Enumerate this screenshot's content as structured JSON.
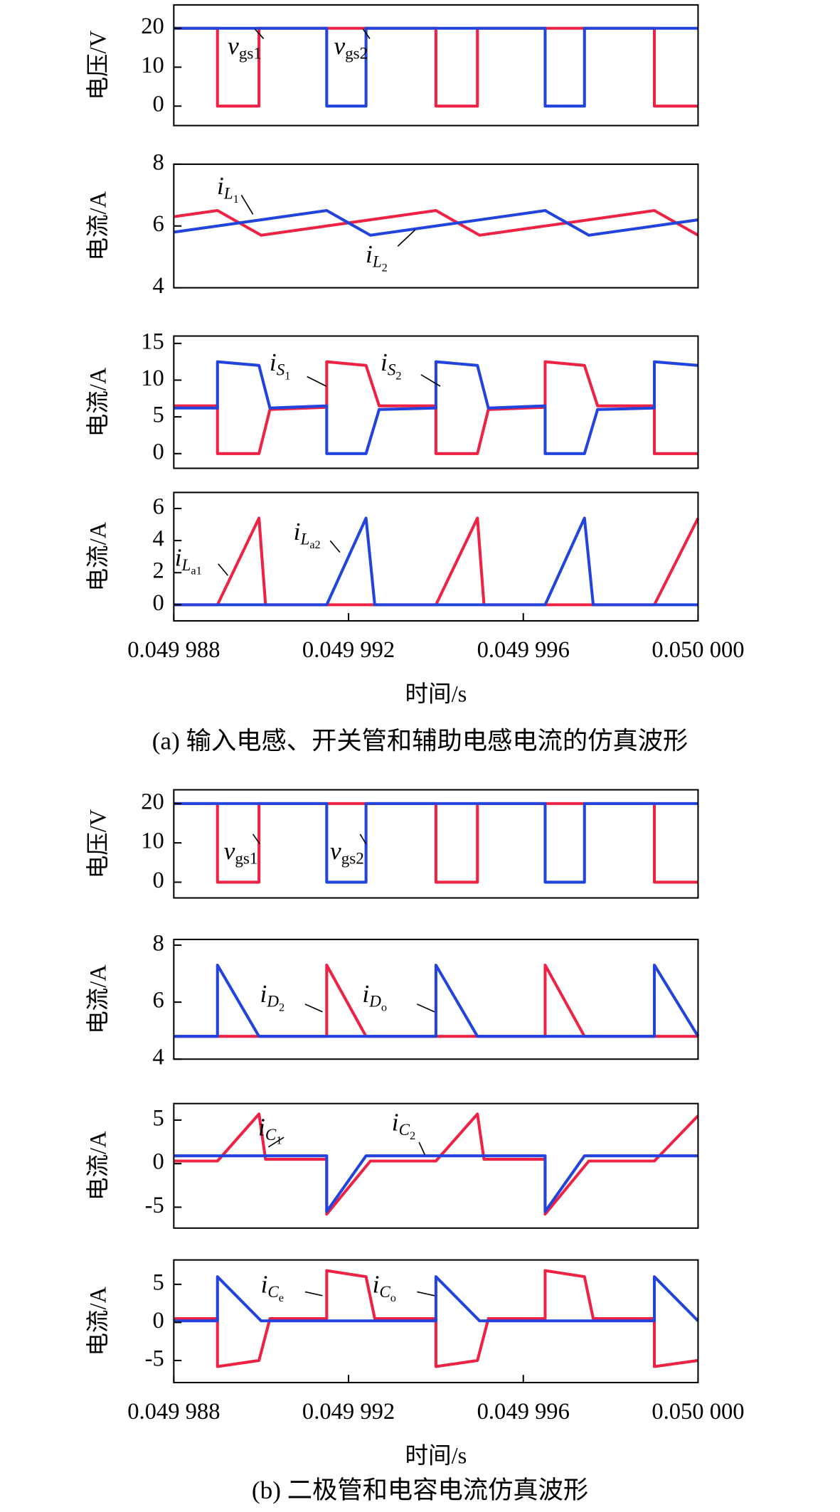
{
  "chart_data": [
    {
      "type": "line",
      "ylabel": "电压/V",
      "xlim": [
        0.049988,
        0.05
      ],
      "ylim": [
        -5,
        26
      ],
      "yticks": [
        0,
        10,
        20
      ],
      "series": [
        {
          "color": "#ee2244",
          "x": [
            0.049988,
            0.049989,
            0.049989,
            0.04998995,
            0.04998995,
            0.049994,
            0.049994,
            0.04999495,
            0.04999495,
            0.049999,
            0.049999,
            0.05
          ],
          "values": [
            20,
            20,
            0,
            0,
            20,
            20,
            0,
            0,
            20,
            20,
            0,
            0
          ]
        },
        {
          "color": "#2244dd",
          "x": [
            0.049988,
            0.0499915,
            0.0499915,
            0.0499924,
            0.0499924,
            0.0499965,
            0.0499965,
            0.0499974,
            0.0499974,
            0.05
          ],
          "values": [
            20,
            20,
            0,
            0,
            20,
            20,
            0,
            0,
            20,
            20
          ]
        }
      ],
      "annotations": [
        {
          "text": "v",
          "sub": "gs1"
        },
        {
          "text": "v",
          "sub": "gs2"
        }
      ]
    },
    {
      "type": "line",
      "ylabel": "电流/A",
      "xlim": [
        0.049988,
        0.05
      ],
      "ylim": [
        4,
        8
      ],
      "yticks": [
        4,
        6,
        8
      ],
      "series": [
        {
          "color": "#ee2244",
          "x": [
            0.049988,
            0.049989,
            0.04999,
            0.049994,
            0.049995,
            0.049999,
            0.05
          ],
          "values": [
            6.3,
            6.5,
            5.7,
            6.5,
            5.7,
            6.5,
            5.7
          ]
        },
        {
          "color": "#2244dd",
          "x": [
            0.049988,
            0.0499915,
            0.0499925,
            0.0499965,
            0.0499975,
            0.05
          ],
          "values": [
            5.8,
            6.5,
            5.7,
            6.5,
            5.7,
            6.2
          ]
        }
      ],
      "annotations": [
        {
          "text": "i",
          "sub": "L",
          "sub2": "1"
        },
        {
          "text": "i",
          "sub": "L",
          "sub2": "2"
        }
      ]
    },
    {
      "type": "line",
      "ylabel": "电流/A",
      "xlim": [
        0.049988,
        0.05
      ],
      "ylim": [
        -2,
        16
      ],
      "yticks": [
        0,
        5,
        10,
        15
      ],
      "series": [
        {
          "color": "#ee2244",
          "x": [
            0.049988,
            0.049989,
            0.049989,
            0.04998995,
            0.0499902,
            0.0499915,
            0.0499915,
            0.0499924,
            0.0499927,
            0.049994,
            0.049994,
            0.04999495,
            0.0499952,
            0.0499965,
            0.0499965,
            0.0499974,
            0.0499977,
            0.049999,
            0.049999,
            0.05
          ],
          "values": [
            6.5,
            6.5,
            0,
            0,
            6,
            6.3,
            12.5,
            12,
            6.5,
            6.5,
            0,
            0,
            6,
            6.3,
            12.5,
            12,
            6.5,
            6.5,
            0,
            0
          ]
        },
        {
          "color": "#2244dd",
          "x": [
            0.049988,
            0.049989,
            0.049989,
            0.04998995,
            0.0499902,
            0.0499915,
            0.0499915,
            0.0499924,
            0.0499927,
            0.049994,
            0.049994,
            0.04999495,
            0.0499952,
            0.0499965,
            0.0499965,
            0.0499974,
            0.0499977,
            0.049999,
            0.049999,
            0.05
          ],
          "values": [
            6.2,
            6.2,
            12.5,
            12,
            6.2,
            6.5,
            0,
            0,
            6,
            6.2,
            12.5,
            12,
            6.2,
            6.5,
            0,
            0,
            6,
            6.2,
            12.5,
            12
          ]
        }
      ],
      "annotations": [
        {
          "text": "i",
          "sub": "S",
          "sub2": "1"
        },
        {
          "text": "i",
          "sub": "S",
          "sub2": "2"
        }
      ]
    },
    {
      "type": "line",
      "ylabel": "电流/A",
      "xlabel": "时间/s",
      "xlim": [
        0.049988,
        0.05
      ],
      "ylim": [
        -1,
        7
      ],
      "yticks": [
        0,
        2,
        4,
        6
      ],
      "xticks": [
        {
          "value": 0.049988,
          "label": "0.049 988"
        },
        {
          "value": 0.049992,
          "label": "0.049 992"
        },
        {
          "value": 0.049996,
          "label": "0.049 996"
        },
        {
          "value": 0.05,
          "label": "0.050 000"
        }
      ],
      "series": [
        {
          "color": "#ee2244",
          "x": [
            0.049988,
            0.049989,
            0.04998995,
            0.0499901,
            0.049994,
            0.04999495,
            0.0499951,
            0.049999,
            0.05
          ],
          "values": [
            0,
            0,
            5.4,
            0,
            0,
            5.4,
            0,
            0,
            5.4
          ]
        },
        {
          "color": "#2244dd",
          "x": [
            0.049988,
            0.0499915,
            0.0499924,
            0.0499926,
            0.0499965,
            0.0499974,
            0.0499976,
            0.05
          ],
          "values": [
            0,
            0,
            5.4,
            0,
            0,
            5.4,
            0,
            0
          ]
        }
      ],
      "annotations": [
        {
          "text": "i",
          "sub": "L",
          "sub2": "a1"
        },
        {
          "text": "i",
          "sub": "L",
          "sub2": "a2"
        }
      ]
    },
    {
      "type": "line",
      "ylabel": "电压/V",
      "xlim": [
        0.049988,
        0.05
      ],
      "ylim": [
        -4,
        23.5
      ],
      "yticks": [
        0,
        10,
        20
      ],
      "series": [
        {
          "color": "#ee2244",
          "x": [
            0.049988,
            0.049989,
            0.049989,
            0.04998995,
            0.04998995,
            0.049994,
            0.049994,
            0.04999495,
            0.04999495,
            0.049999,
            0.049999,
            0.05
          ],
          "values": [
            20,
            20,
            0,
            0,
            20,
            20,
            0,
            0,
            20,
            20,
            0,
            0
          ]
        },
        {
          "color": "#2244dd",
          "x": [
            0.049988,
            0.0499915,
            0.0499915,
            0.0499924,
            0.0499924,
            0.0499965,
            0.0499965,
            0.0499974,
            0.0499974,
            0.05
          ],
          "values": [
            20,
            20,
            0,
            0,
            20,
            20,
            0,
            0,
            20,
            20
          ]
        }
      ],
      "annotations": [
        {
          "text": "v",
          "sub": "gs1"
        },
        {
          "text": "v",
          "sub": "gs2"
        }
      ]
    },
    {
      "type": "line",
      "ylabel": "电流/A",
      "xlim": [
        0.049988,
        0.05
      ],
      "ylim": [
        4,
        8.2
      ],
      "yticks": [
        4,
        6,
        8
      ],
      "series": [
        {
          "color": "#ee2244",
          "x": [
            0.049988,
            0.0499915,
            0.0499915,
            0.0499924,
            0.0499965,
            0.0499965,
            0.0499974,
            0.05
          ],
          "values": [
            4.8,
            4.8,
            7.3,
            4.8,
            4.8,
            7.3,
            4.8,
            4.8
          ]
        },
        {
          "color": "#2244dd",
          "x": [
            0.049988,
            0.049989,
            0.049989,
            0.04998995,
            0.049994,
            0.049994,
            0.04999495,
            0.049999,
            0.049999,
            0.05
          ],
          "values": [
            4.8,
            4.8,
            7.3,
            4.8,
            4.8,
            7.3,
            4.8,
            4.8,
            7.3,
            4.8
          ]
        }
      ],
      "annotations": [
        {
          "text": "i",
          "sub": "D",
          "sub2": "2"
        },
        {
          "text": "i",
          "sub": "D",
          "sub2": "o"
        }
      ]
    },
    {
      "type": "line",
      "ylabel": "电流/A",
      "xlim": [
        0.049988,
        0.05
      ],
      "ylim": [
        -7.4,
        6.9
      ],
      "yticks": [
        -5,
        0,
        5
      ],
      "series": [
        {
          "color": "#ee2244",
          "x": [
            0.049988,
            0.049989,
            0.04998995,
            0.0499901,
            0.0499915,
            0.0499915,
            0.0499925,
            0.049994,
            0.04999495,
            0.0499951,
            0.0499965,
            0.0499965,
            0.0499975,
            0.049999,
            0.05
          ],
          "values": [
            0.3,
            0.3,
            5.7,
            0.5,
            0.5,
            -5.8,
            0.3,
            0.3,
            5.7,
            0.5,
            0.5,
            -5.8,
            0.3,
            0.3,
            5.5
          ]
        },
        {
          "color": "#2244dd",
          "x": [
            0.049988,
            0.0499915,
            0.0499915,
            0.0499924,
            0.0499965,
            0.0499965,
            0.0499974,
            0.05
          ],
          "values": [
            0.9,
            0.9,
            -5.5,
            0.9,
            0.9,
            -5.5,
            0.9,
            0.9
          ]
        }
      ],
      "annotations": [
        {
          "text": "i",
          "sub": "C",
          "sub2": "1"
        },
        {
          "text": "i",
          "sub": "C",
          "sub2": "2"
        }
      ]
    },
    {
      "type": "line",
      "ylabel": "电流/A",
      "xlabel": "时间/s",
      "xlim": [
        0.049988,
        0.05
      ],
      "ylim": [
        -7.9,
        8.2
      ],
      "yticks": [
        -5,
        0,
        5
      ],
      "xticks": [
        {
          "value": 0.049988,
          "label": "0.049 988"
        },
        {
          "value": 0.049992,
          "label": "0.049 992"
        },
        {
          "value": 0.049996,
          "label": "0.049 996"
        },
        {
          "value": 0.05,
          "label": "0.050 000"
        }
      ],
      "series": [
        {
          "color": "#ee2244",
          "x": [
            0.049988,
            0.049989,
            0.049989,
            0.04998995,
            0.0499902,
            0.0499915,
            0.0499915,
            0.0499924,
            0.0499926,
            0.049994,
            0.049994,
            0.04999495,
            0.0499952,
            0.0499965,
            0.0499965,
            0.0499974,
            0.0499976,
            0.049999,
            0.049999,
            0.05
          ],
          "values": [
            0.5,
            0.5,
            -5.8,
            -5,
            0.5,
            0.5,
            6.8,
            6,
            0.5,
            0.5,
            -5.8,
            -5,
            0.5,
            0.5,
            6.8,
            6,
            0.5,
            0.5,
            -5.8,
            -5
          ]
        },
        {
          "color": "#2244dd",
          "x": [
            0.049988,
            0.049989,
            0.049989,
            0.04999,
            0.049994,
            0.049994,
            0.049995,
            0.049999,
            0.049999,
            0.05
          ],
          "values": [
            0.2,
            0.2,
            6,
            0.2,
            0.2,
            6,
            0.2,
            0.2,
            6,
            0.2
          ]
        }
      ],
      "annotations": [
        {
          "text": "i",
          "sub": "C",
          "sub2": "e"
        },
        {
          "text": "i",
          "sub": "C",
          "sub2": "o"
        }
      ]
    }
  ],
  "captions": [
    "(a) 输入电感、开关管和辅助电感电流的仿真波形",
    "(b) 二极管和电容电流仿真波形"
  ]
}
